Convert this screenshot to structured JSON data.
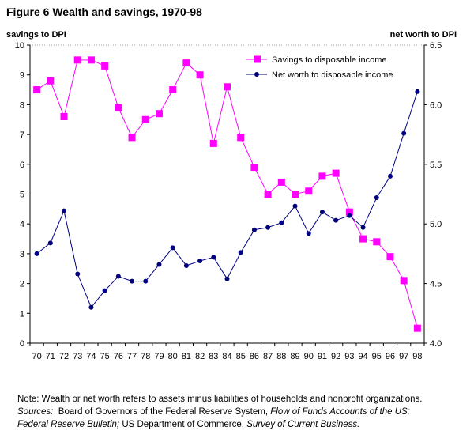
{
  "title": "Figure 6  Wealth and savings, 1970-98",
  "chart_data": {
    "type": "line",
    "categories": [
      "70",
      "71",
      "72",
      "73",
      "74",
      "75",
      "76",
      "77",
      "78",
      "79",
      "80",
      "81",
      "82",
      "83",
      "84",
      "85",
      "86",
      "87",
      "88",
      "89",
      "90",
      "91",
      "92",
      "93",
      "94",
      "95",
      "96",
      "97",
      "98"
    ],
    "ylabel_left": "savings to DPI",
    "ylabel_right": "net worth to DPI",
    "ylim_left": [
      0,
      10
    ],
    "yticks_left": [
      "0",
      "1",
      "2",
      "3",
      "4",
      "5",
      "6",
      "7",
      "8",
      "9",
      "10"
    ],
    "ylim_right": [
      4.0,
      6.5
    ],
    "yticks_right": [
      "4.0",
      "4.5",
      "5.0",
      "5.5",
      "6.0",
      "6.5"
    ],
    "grid": false,
    "legend_position": "top-right",
    "series": [
      {
        "name": "Savings to disposable income",
        "axis": "left",
        "color": "#ff00ff",
        "marker": "square",
        "values": [
          8.5,
          8.8,
          7.6,
          9.5,
          9.5,
          9.3,
          7.9,
          6.9,
          7.5,
          7.7,
          8.5,
          9.4,
          9.0,
          6.7,
          8.6,
          6.9,
          5.9,
          5.0,
          5.4,
          5.0,
          5.1,
          5.6,
          5.7,
          4.4,
          3.5,
          3.4,
          2.9,
          2.1,
          0.5
        ]
      },
      {
        "name": "Net worth to disposable income",
        "axis": "right",
        "color": "#000080",
        "marker": "circle",
        "values": [
          4.75,
          4.84,
          5.11,
          4.58,
          4.3,
          4.44,
          4.56,
          4.52,
          4.52,
          4.66,
          4.8,
          4.65,
          4.69,
          4.72,
          4.54,
          4.76,
          4.95,
          4.97,
          5.01,
          5.15,
          4.92,
          5.1,
          5.03,
          5.07,
          4.97,
          5.22,
          5.4,
          5.76,
          6.11
        ]
      }
    ]
  },
  "note": {
    "line1": "Note: Wealth or net worth refers to assets minus liabilities of households and nonprofit organizations.",
    "sources_label": "Sources:",
    "s1": "  Board of Governors of the Federal Reserve System, ",
    "s2": "Flow of Funds Accounts of the US;",
    "s3": "Federal Reserve Bulletin;",
    "s4": " US Department of Commerce, ",
    "s5": "Survey of Current Business."
  }
}
